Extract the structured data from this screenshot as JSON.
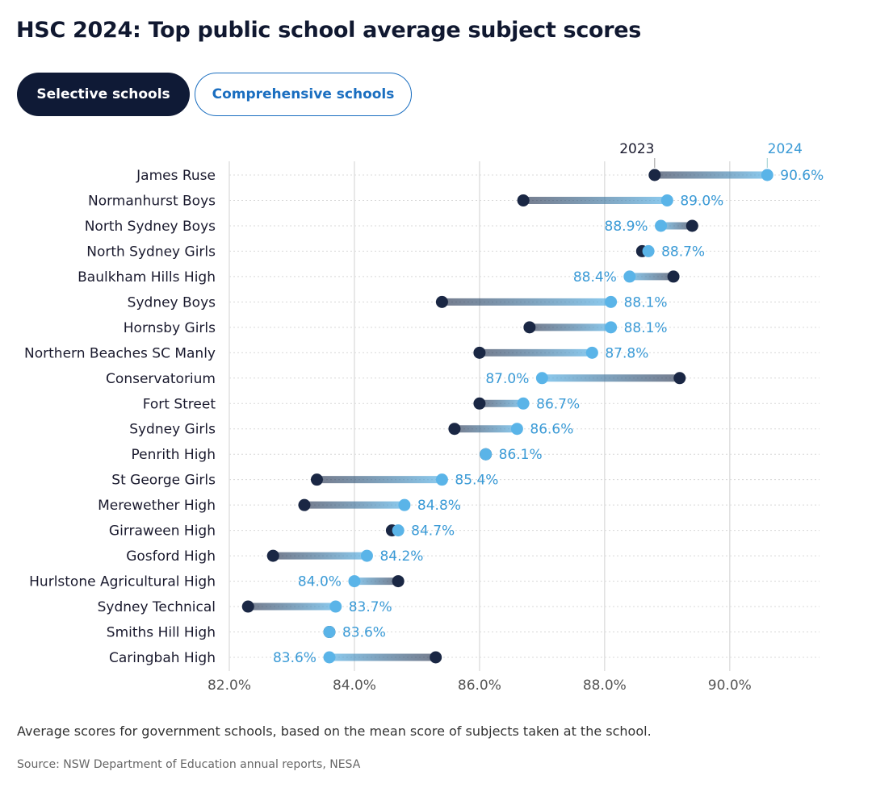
{
  "tabs": [
    "Selective schools",
    "Comprehensive schools"
  ],
  "chart_data": {
    "type": "dumbbell",
    "title": "HSC 2024: Top public school average subject scores",
    "note": "Average scores for government schools, based on the mean score of subjects taken at the school.",
    "source": "Source: NSW Department of Education annual reports, NESA",
    "categories": [
      "James Ruse",
      "Normanhurst Boys",
      "North Sydney Boys",
      "North Sydney Girls",
      "Baulkham Hills High",
      "Sydney Boys",
      "Hornsby Girls",
      "Northern Beaches SC Manly",
      "Conservatorium",
      "Fort Street",
      "Sydney Girls",
      "Penrith High",
      "St George Girls",
      "Merewether High",
      "Girraween High",
      "Gosford High",
      "Hurlstone Agricultural High",
      "Sydney Technical",
      "Smiths Hill High",
      "Caringbah High"
    ],
    "series": [
      {
        "name": "2023",
        "color": "#1a2744",
        "values": [
          88.8,
          86.7,
          89.4,
          88.6,
          89.1,
          85.4,
          86.8,
          86.0,
          89.2,
          86.0,
          85.6,
          86.1,
          83.4,
          83.2,
          84.6,
          82.7,
          84.7,
          82.3,
          83.6,
          85.3
        ]
      },
      {
        "name": "2024",
        "color": "#5ab4e8",
        "values": [
          90.6,
          89.0,
          88.9,
          88.7,
          88.4,
          88.1,
          88.1,
          87.8,
          87.0,
          86.7,
          86.6,
          86.1,
          85.4,
          84.8,
          84.7,
          84.2,
          84.0,
          83.7,
          83.6,
          83.6
        ],
        "value_labels": [
          "90.6%",
          "89.0%",
          "88.9%",
          "88.7%",
          "88.4%",
          "88.1%",
          "88.1%",
          "87.8%",
          "87.0%",
          "86.7%",
          "86.6%",
          "86.1%",
          "85.4%",
          "84.8%",
          "84.7%",
          "84.2%",
          "84.0%",
          "83.7%",
          "83.6%",
          "83.6%"
        ]
      }
    ],
    "xlim": [
      82,
      91.5
    ],
    "xticks": [
      {
        "value": 82,
        "label": "82.0%"
      },
      {
        "value": 84,
        "label": "84.0%"
      },
      {
        "value": 86,
        "label": "86.0%"
      },
      {
        "value": 88,
        "label": "88.0%"
      },
      {
        "value": 90,
        "label": "90.0%"
      }
    ],
    "grid": true
  }
}
